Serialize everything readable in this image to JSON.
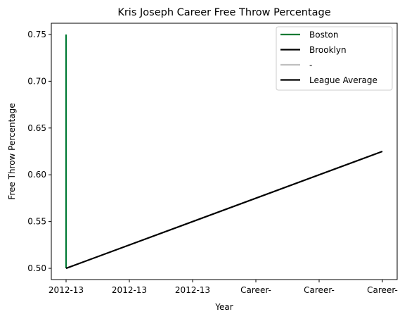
{
  "chart_data": {
    "type": "line",
    "title": "Kris Joseph Career Free Throw Percentage",
    "xlabel": "Year",
    "ylabel": "Free Throw Percentage",
    "categories": [
      "2012-13",
      "2012-13",
      "2012-13",
      "Career-",
      "Career-",
      "Career-"
    ],
    "ylim": [
      0.488,
      0.762
    ],
    "yticks": [
      "0.50",
      "0.55",
      "0.60",
      "0.65",
      "0.70",
      "0.75"
    ],
    "legend_position": "top-right",
    "grid": false,
    "series": [
      {
        "name": "Boston",
        "color": "#007a33",
        "points": [
          {
            "x": 0,
            "y": 0.5
          },
          {
            "x": 0,
            "y": 0.75
          }
        ]
      },
      {
        "name": "Brooklyn",
        "color": "#000000",
        "points": [
          {
            "x": 0,
            "y": 0.5
          },
          {
            "x": 0,
            "y": 0.5
          }
        ]
      },
      {
        "name": "-",
        "color": "#bfbfbf",
        "points": []
      },
      {
        "name": "League Average",
        "color": "#000000",
        "points": [
          {
            "x": 0,
            "y": 0.5
          },
          {
            "x": 5,
            "y": 0.625
          }
        ]
      }
    ]
  }
}
